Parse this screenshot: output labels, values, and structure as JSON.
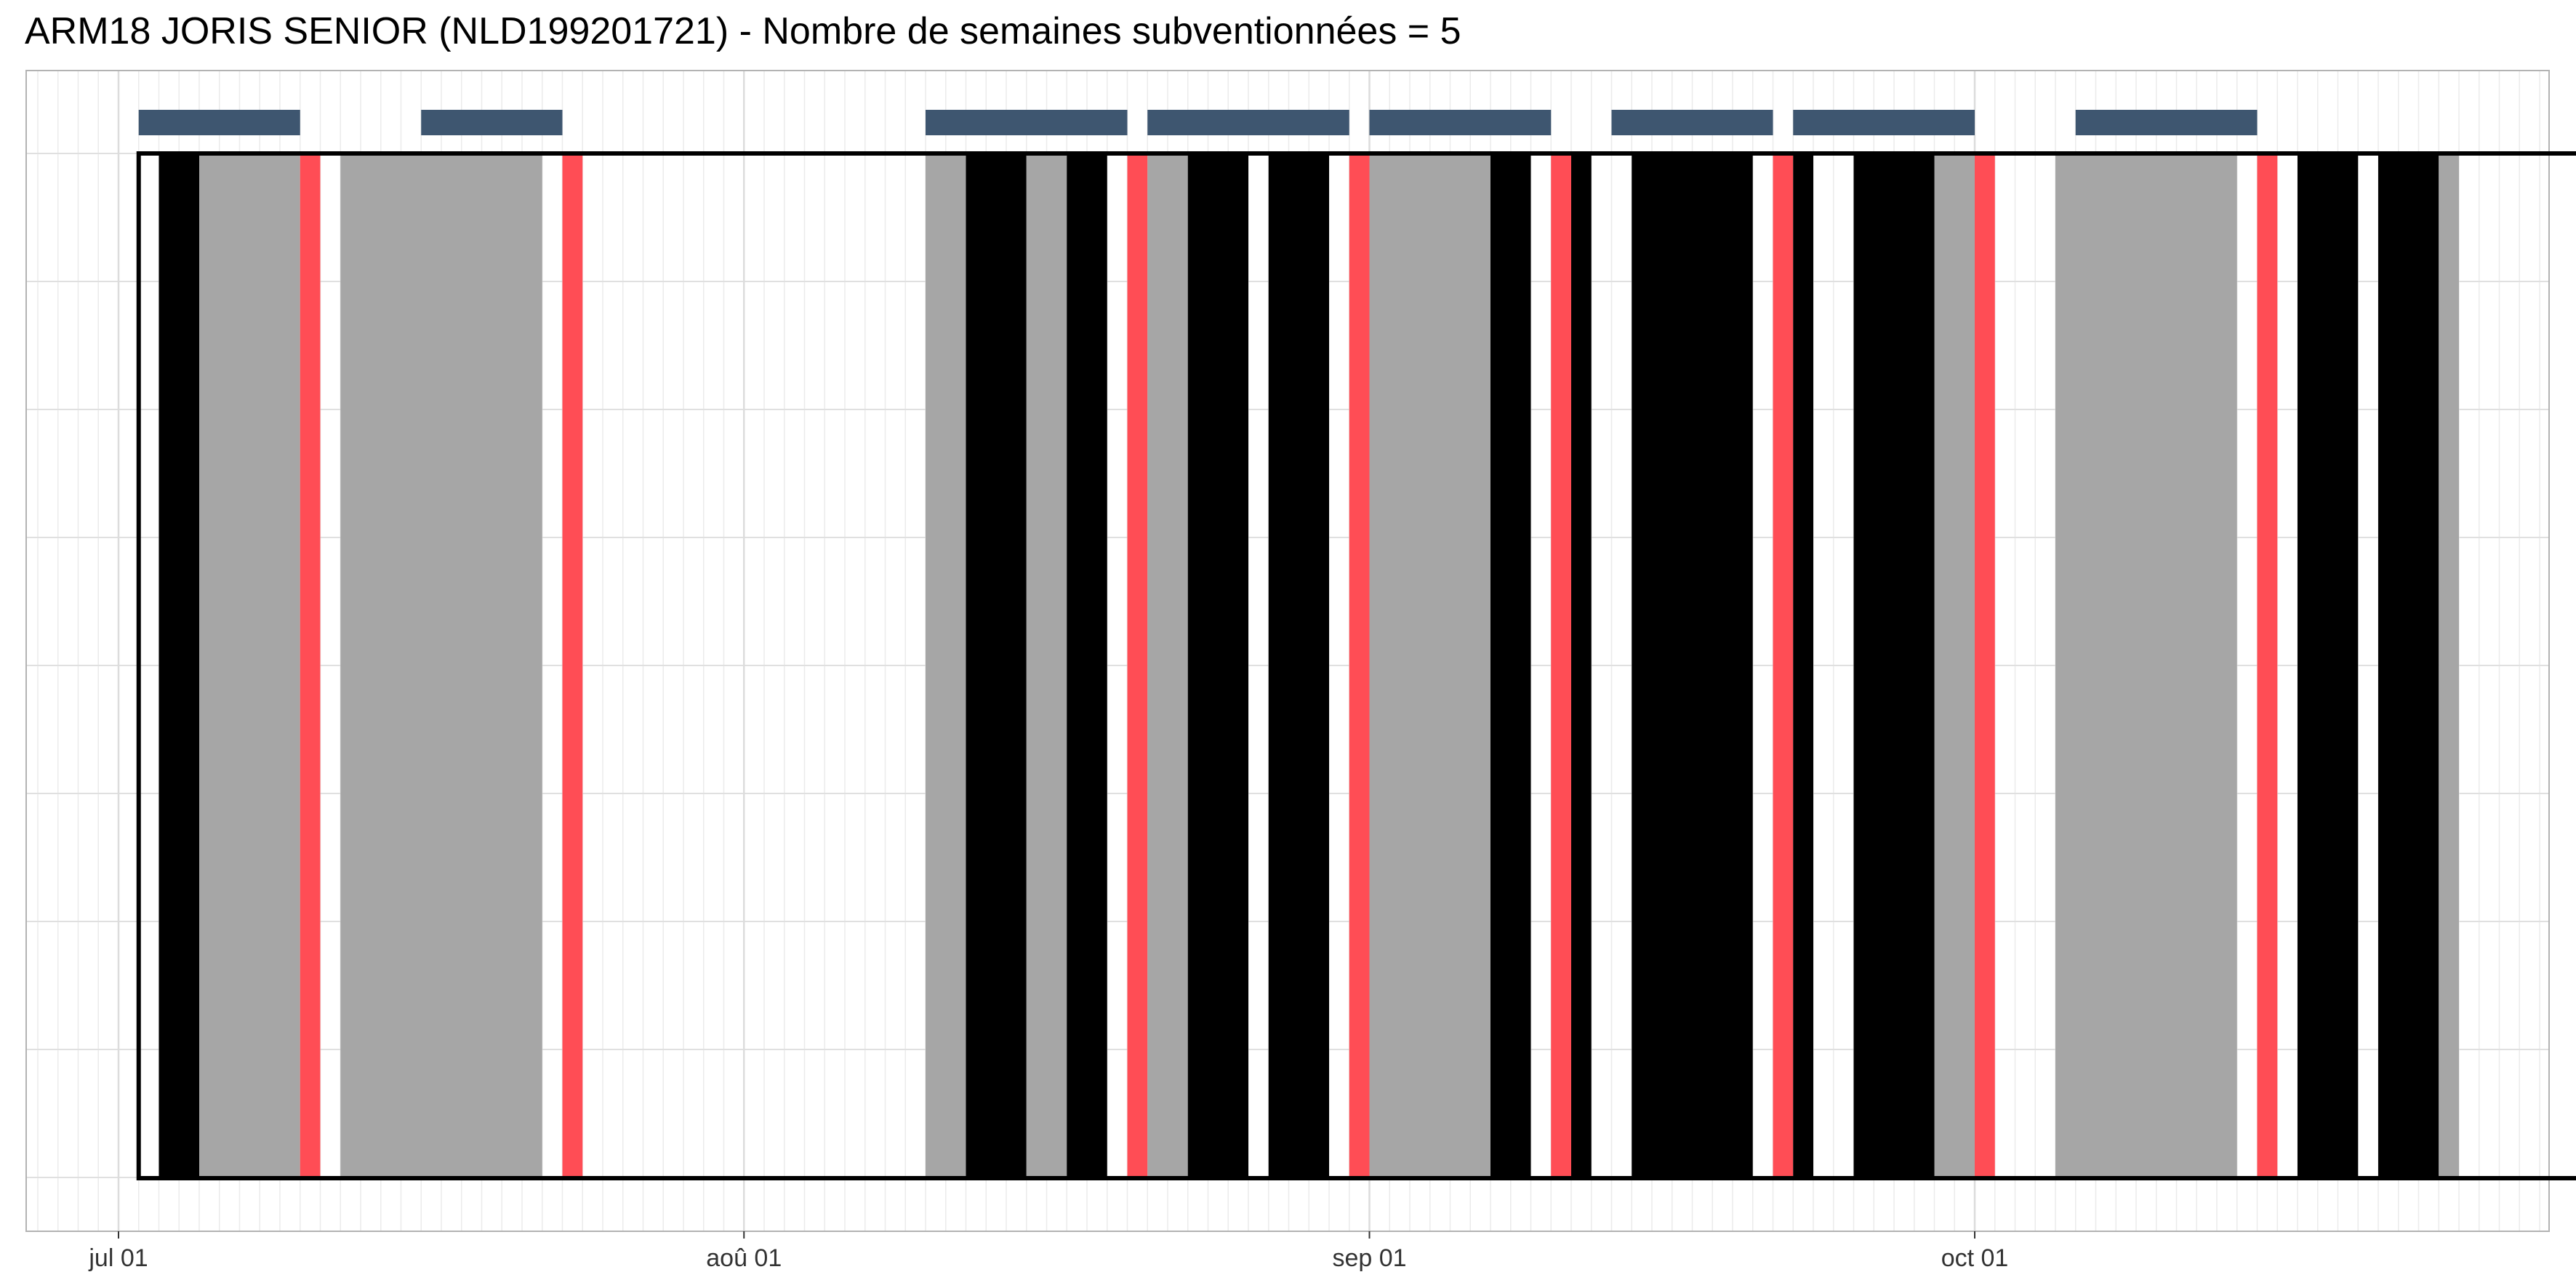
{
  "title": "ARM18 JORIS SENIOR (NLD199201721) - Nombre de semaines subventionnées = 5",
  "chart_data": {
    "type": "timeline",
    "title": "ARM18 JORIS SENIOR (NLD199201721) - Nombre de semaines subventionnées = 5",
    "x_type": "date",
    "xlim": [
      "2018-06-25",
      "2018-11-08"
    ],
    "x_ticks": [
      {
        "date": "2018-07-01",
        "label": "jul 01"
      },
      {
        "date": "2018-08-01",
        "label": "aoû 01"
      },
      {
        "date": "2018-09-01",
        "label": "sep 01"
      },
      {
        "date": "2018-10-01",
        "label": "oct 01"
      }
    ],
    "period": {
      "start": "2018-07-02",
      "end": "2018-11-01"
    },
    "colors": {
      "black": "#000000",
      "grey": "#a6a6a6",
      "red": "#ff4d55",
      "week_bar": "#3e5670"
    },
    "day_blocks": [
      {
        "start": "2018-07-03",
        "end": "2018-07-05",
        "color": "black"
      },
      {
        "start": "2018-07-05",
        "end": "2018-07-10",
        "color": "grey"
      },
      {
        "start": "2018-07-10",
        "end": "2018-07-11",
        "color": "red"
      },
      {
        "start": "2018-07-12",
        "end": "2018-07-22",
        "color": "grey"
      },
      {
        "start": "2018-07-23",
        "end": "2018-07-24",
        "color": "red"
      },
      {
        "start": "2018-08-10",
        "end": "2018-08-12",
        "color": "grey"
      },
      {
        "start": "2018-08-12",
        "end": "2018-08-15",
        "color": "black"
      },
      {
        "start": "2018-08-15",
        "end": "2018-08-17",
        "color": "grey"
      },
      {
        "start": "2018-08-17",
        "end": "2018-08-19",
        "color": "black"
      },
      {
        "start": "2018-08-20",
        "end": "2018-08-21",
        "color": "red"
      },
      {
        "start": "2018-08-21",
        "end": "2018-08-23",
        "color": "grey"
      },
      {
        "start": "2018-08-23",
        "end": "2018-08-26",
        "color": "black"
      },
      {
        "start": "2018-08-27",
        "end": "2018-08-30",
        "color": "black"
      },
      {
        "start": "2018-08-31",
        "end": "2018-09-01",
        "color": "red"
      },
      {
        "start": "2018-09-01",
        "end": "2018-09-07",
        "color": "grey"
      },
      {
        "start": "2018-09-07",
        "end": "2018-09-09",
        "color": "black"
      },
      {
        "start": "2018-09-10",
        "end": "2018-09-11",
        "color": "red"
      },
      {
        "start": "2018-09-11",
        "end": "2018-09-12",
        "color": "black"
      },
      {
        "start": "2018-09-14",
        "end": "2018-09-20",
        "color": "black"
      },
      {
        "start": "2018-09-21",
        "end": "2018-09-22",
        "color": "red"
      },
      {
        "start": "2018-09-22",
        "end": "2018-09-23",
        "color": "black"
      },
      {
        "start": "2018-09-25",
        "end": "2018-09-29",
        "color": "black"
      },
      {
        "start": "2018-09-29",
        "end": "2018-10-01",
        "color": "grey"
      },
      {
        "start": "2018-10-01",
        "end": "2018-10-02",
        "color": "red"
      },
      {
        "start": "2018-10-05",
        "end": "2018-10-14",
        "color": "grey"
      },
      {
        "start": "2018-10-15",
        "end": "2018-10-16",
        "color": "red"
      },
      {
        "start": "2018-10-17",
        "end": "2018-10-20",
        "color": "black"
      },
      {
        "start": "2018-10-21",
        "end": "2018-10-24",
        "color": "black"
      },
      {
        "start": "2018-10-24",
        "end": "2018-10-25",
        "color": "grey"
      }
    ],
    "week_bars": [
      {
        "start": "2018-07-02",
        "end": "2018-07-10"
      },
      {
        "start": "2018-07-16",
        "end": "2018-07-23"
      },
      {
        "start": "2018-08-10",
        "end": "2018-08-20"
      },
      {
        "start": "2018-08-21",
        "end": "2018-08-31"
      },
      {
        "start": "2018-09-01",
        "end": "2018-09-10"
      },
      {
        "start": "2018-09-13",
        "end": "2018-09-21"
      },
      {
        "start": "2018-09-22",
        "end": "2018-10-01"
      },
      {
        "start": "2018-10-06",
        "end": "2018-10-15"
      }
    ]
  }
}
